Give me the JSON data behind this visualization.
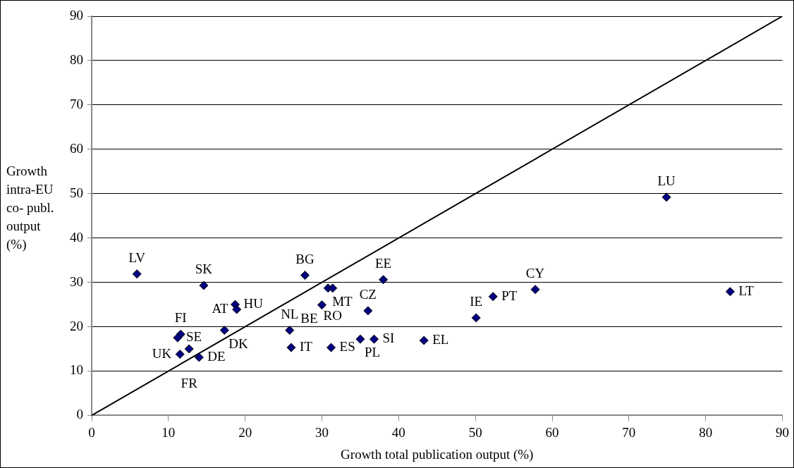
{
  "chart_data": {
    "type": "scatter",
    "xlabel": "Growth total publication output (%)",
    "ylabel": "Growth intra-EU co- publ. output (%)",
    "xlim": [
      0,
      90
    ],
    "ylim": [
      0,
      90
    ],
    "xticks": [
      0,
      10,
      20,
      30,
      40,
      50,
      60,
      70,
      80,
      90
    ],
    "yticks": [
      0,
      10,
      20,
      30,
      40,
      50,
      60,
      70,
      80,
      90
    ],
    "grid": "y",
    "legend": false,
    "marker": "diamond",
    "series": [
      {
        "type": "scatter",
        "color": "#000080",
        "x": [
          5.9,
          14.6,
          18.7,
          18.9,
          17.3,
          11.6,
          11.2,
          11.5,
          12.7,
          14.0,
          25.8,
          26.0,
          27.8,
          30.8,
          31.4,
          30.0,
          31.2,
          38.0,
          36.0,
          35.0,
          36.8,
          43.3,
          50.1,
          52.3,
          57.8,
          74.9,
          83.2
        ],
        "values": [
          31.9,
          29.3,
          25.0,
          23.9,
          19.2,
          18.3,
          17.5,
          13.8,
          15.0,
          13.1,
          19.2,
          15.3,
          31.6,
          28.7,
          28.7,
          24.9,
          15.3,
          30.6,
          23.6,
          17.2,
          17.2,
          16.9,
          22.0,
          26.8,
          28.4,
          49.2,
          27.9
        ]
      },
      {
        "type": "line",
        "color": "#000000",
        "marker": "none",
        "x": [
          0,
          90
        ],
        "values": [
          0,
          90
        ]
      }
    ],
    "annotations": [
      {
        "text": "LV",
        "x": 5.9,
        "y": 31.9
      },
      {
        "text": "SK",
        "x": 14.6,
        "y": 29.3
      },
      {
        "text": "HU",
        "x": 18.7,
        "y": 25.0
      },
      {
        "text": "AT",
        "x": 18.9,
        "y": 23.9
      },
      {
        "text": "DK",
        "x": 17.3,
        "y": 19.2
      },
      {
        "text": "FI",
        "x": 11.6,
        "y": 18.3
      },
      {
        "text": "SE",
        "x": 11.2,
        "y": 17.5
      },
      {
        "text": "UK",
        "x": 11.5,
        "y": 13.8
      },
      {
        "text": "FR",
        "x": 12.7,
        "y": 15.0
      },
      {
        "text": "DE",
        "x": 14.0,
        "y": 13.1
      },
      {
        "text": "NL",
        "x": 25.8,
        "y": 19.2
      },
      {
        "text": "IT",
        "x": 26.0,
        "y": 15.3
      },
      {
        "text": "BG",
        "x": 27.8,
        "y": 31.6
      },
      {
        "text": "MT",
        "x": 30.8,
        "y": 28.7
      },
      {
        "text": "RO",
        "x": 31.4,
        "y": 28.7
      },
      {
        "text": "BE",
        "x": 30.0,
        "y": 24.9
      },
      {
        "text": "ES",
        "x": 31.2,
        "y": 15.3
      },
      {
        "text": "EE",
        "x": 38.0,
        "y": 30.6
      },
      {
        "text": "CZ",
        "x": 36.0,
        "y": 23.6
      },
      {
        "text": "PL",
        "x": 35.0,
        "y": 17.2
      },
      {
        "text": "SI",
        "x": 36.8,
        "y": 17.2
      },
      {
        "text": "EL",
        "x": 43.3,
        "y": 16.9
      },
      {
        "text": "IE",
        "x": 50.1,
        "y": 22.0
      },
      {
        "text": "PT",
        "x": 52.3,
        "y": 26.8
      },
      {
        "text": "CY",
        "x": 57.8,
        "y": 28.4
      },
      {
        "text": "LU",
        "x": 74.9,
        "y": 49.2
      },
      {
        "text": "LT",
        "x": 83.2,
        "y": 27.9
      }
    ]
  }
}
